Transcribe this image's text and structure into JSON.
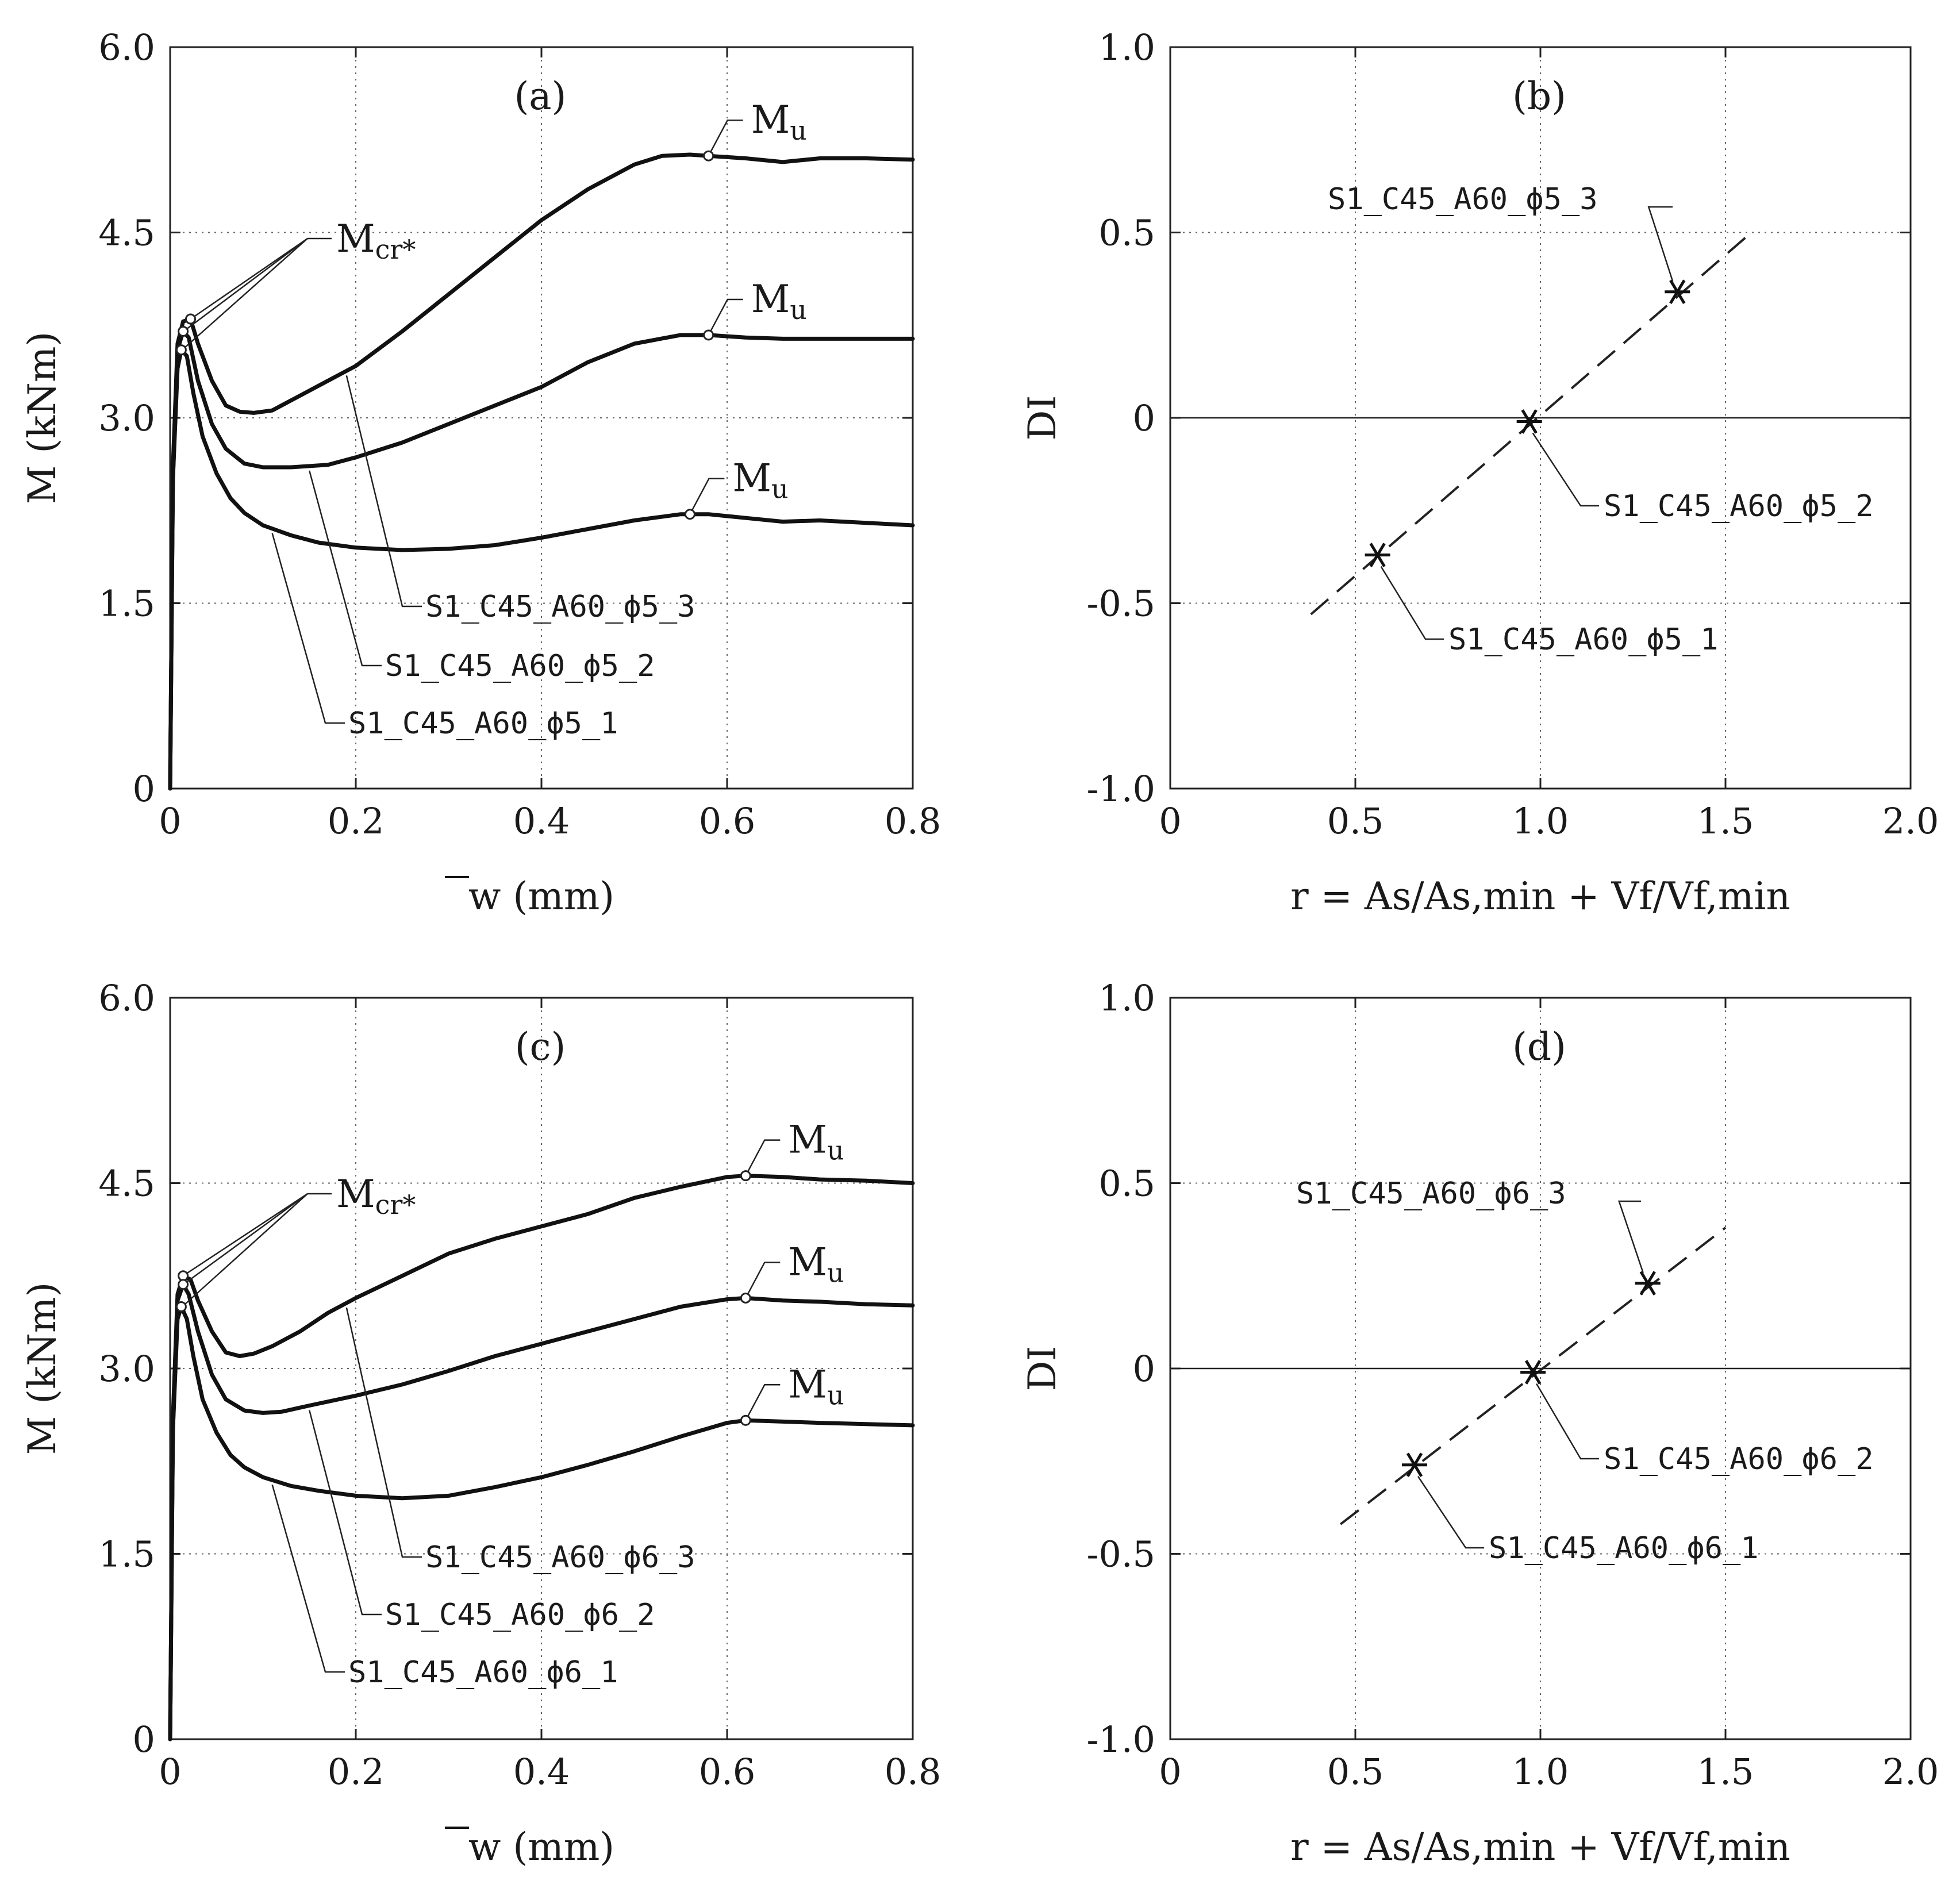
{
  "chart_data": [
    {
      "id": "a",
      "type": "line",
      "panel_label": "(a)",
      "xlabel": "w (mm)",
      "ylabel": "M (kNm)",
      "xlim": [
        0,
        0.8
      ],
      "ylim": [
        0,
        6.0
      ],
      "xticks": [
        "0",
        "0.2",
        "0.4",
        "0.6",
        "0.8"
      ],
      "yticks": [
        "0",
        "1.5",
        "3.0",
        "4.5",
        "6.0"
      ],
      "cracking_label": "Mcr*",
      "ultimate_label": "Mu",
      "series": [
        {
          "name": "S1_C45_A60_ϕ5_3",
          "x": [
            0,
            0.003,
            0.008,
            0.014,
            0.022,
            0.03,
            0.045,
            0.06,
            0.075,
            0.09,
            0.11,
            0.14,
            0.17,
            0.2,
            0.25,
            0.3,
            0.35,
            0.4,
            0.45,
            0.5,
            0.53,
            0.56,
            0.58,
            0.62,
            0.66,
            0.7,
            0.75,
            0.8
          ],
          "y": [
            0,
            2.6,
            3.6,
            3.78,
            3.8,
            3.6,
            3.3,
            3.1,
            3.05,
            3.04,
            3.06,
            3.18,
            3.3,
            3.42,
            3.7,
            4.0,
            4.3,
            4.6,
            4.85,
            5.05,
            5.12,
            5.13,
            5.12,
            5.1,
            5.07,
            5.1,
            5.1,
            5.09
          ],
          "ultimate": {
            "x": 0.58,
            "y": 5.12
          }
        },
        {
          "name": "S1_C45_A60_ϕ5_2",
          "x": [
            0,
            0.003,
            0.008,
            0.014,
            0.02,
            0.03,
            0.045,
            0.06,
            0.08,
            0.1,
            0.13,
            0.17,
            0.2,
            0.25,
            0.3,
            0.35,
            0.4,
            0.45,
            0.5,
            0.55,
            0.58,
            0.62,
            0.66,
            0.7,
            0.75,
            0.8
          ],
          "y": [
            0,
            2.5,
            3.55,
            3.7,
            3.65,
            3.3,
            2.95,
            2.75,
            2.63,
            2.6,
            2.6,
            2.62,
            2.68,
            2.8,
            2.95,
            3.1,
            3.25,
            3.45,
            3.6,
            3.67,
            3.67,
            3.65,
            3.64,
            3.64,
            3.64,
            3.64
          ],
          "ultimate": {
            "x": 0.58,
            "y": 3.67
          }
        },
        {
          "name": "S1_C45_A60_ϕ5_1",
          "x": [
            0,
            0.003,
            0.008,
            0.012,
            0.018,
            0.025,
            0.035,
            0.05,
            0.065,
            0.08,
            0.1,
            0.13,
            0.16,
            0.2,
            0.25,
            0.3,
            0.35,
            0.4,
            0.45,
            0.5,
            0.55,
            0.58,
            0.62,
            0.66,
            0.7,
            0.75,
            0.8
          ],
          "y": [
            0,
            2.5,
            3.4,
            3.55,
            3.5,
            3.2,
            2.85,
            2.55,
            2.35,
            2.23,
            2.13,
            2.05,
            1.99,
            1.95,
            1.93,
            1.94,
            1.97,
            2.03,
            2.1,
            2.17,
            2.22,
            2.22,
            2.19,
            2.16,
            2.17,
            2.15,
            2.13
          ],
          "ultimate": {
            "x": 0.56,
            "y": 2.22
          }
        }
      ]
    },
    {
      "id": "b",
      "type": "scatter",
      "panel_label": "(b)",
      "xlabel": "r = As/As,min + Vf/Vf,min",
      "ylabel": "DI",
      "xlim": [
        0,
        2.0
      ],
      "ylim": [
        -1.0,
        1.0
      ],
      "xticks": [
        "0",
        "0.5",
        "1.0",
        "1.5",
        "2.0"
      ],
      "yticks": [
        "-1.0",
        "-0.5",
        "0",
        "0.5",
        "1.0"
      ],
      "fit_line": {
        "x": [
          0.38,
          1.57
        ],
        "y": [
          -0.53,
          0.5
        ]
      },
      "series": [
        {
          "name": "S1_C45_A60_ϕ5_3",
          "x": 1.37,
          "y": 0.34
        },
        {
          "name": "S1_C45_A60_ϕ5_2",
          "x": 0.97,
          "y": -0.01
        },
        {
          "name": "S1_C45_A60_ϕ5_1",
          "x": 0.56,
          "y": -0.37
        }
      ]
    },
    {
      "id": "c",
      "type": "line",
      "panel_label": "(c)",
      "xlabel": "w (mm)",
      "ylabel": "M (kNm)",
      "xlim": [
        0,
        0.8
      ],
      "ylim": [
        0,
        6.0
      ],
      "xticks": [
        "0",
        "0.2",
        "0.4",
        "0.6",
        "0.8"
      ],
      "yticks": [
        "0",
        "1.5",
        "3.0",
        "4.5",
        "6.0"
      ],
      "cracking_label": "Mcr*",
      "ultimate_label": "Mu",
      "series": [
        {
          "name": "S1_C45_A60_ϕ6_3",
          "x": [
            0,
            0.003,
            0.008,
            0.014,
            0.022,
            0.03,
            0.045,
            0.06,
            0.075,
            0.09,
            0.11,
            0.14,
            0.17,
            0.2,
            0.25,
            0.3,
            0.35,
            0.4,
            0.45,
            0.5,
            0.55,
            0.6,
            0.62,
            0.66,
            0.7,
            0.75,
            0.8
          ],
          "y": [
            0,
            2.6,
            3.6,
            3.75,
            3.72,
            3.55,
            3.3,
            3.13,
            3.1,
            3.12,
            3.18,
            3.3,
            3.45,
            3.57,
            3.75,
            3.93,
            4.05,
            4.15,
            4.25,
            4.38,
            4.47,
            4.55,
            4.56,
            4.55,
            4.53,
            4.52,
            4.5
          ],
          "ultimate": {
            "x": 0.62,
            "y": 4.56
          }
        },
        {
          "name": "S1_C45_A60_ϕ6_2",
          "x": [
            0,
            0.003,
            0.008,
            0.014,
            0.02,
            0.03,
            0.045,
            0.06,
            0.08,
            0.1,
            0.12,
            0.15,
            0.2,
            0.25,
            0.3,
            0.35,
            0.4,
            0.45,
            0.5,
            0.55,
            0.6,
            0.62,
            0.66,
            0.7,
            0.75,
            0.8
          ],
          "y": [
            0,
            2.5,
            3.55,
            3.68,
            3.6,
            3.3,
            2.95,
            2.75,
            2.66,
            2.64,
            2.65,
            2.7,
            2.78,
            2.87,
            2.98,
            3.1,
            3.2,
            3.3,
            3.4,
            3.5,
            3.56,
            3.57,
            3.55,
            3.54,
            3.52,
            3.51
          ],
          "ultimate": {
            "x": 0.62,
            "y": 3.57
          }
        },
        {
          "name": "S1_C45_A60_ϕ6_1",
          "x": [
            0,
            0.003,
            0.008,
            0.012,
            0.018,
            0.025,
            0.035,
            0.05,
            0.065,
            0.08,
            0.1,
            0.13,
            0.16,
            0.2,
            0.25,
            0.3,
            0.35,
            0.4,
            0.45,
            0.5,
            0.55,
            0.6,
            0.62,
            0.66,
            0.7,
            0.75,
            0.8
          ],
          "y": [
            0,
            2.5,
            3.4,
            3.5,
            3.4,
            3.1,
            2.75,
            2.48,
            2.3,
            2.2,
            2.12,
            2.05,
            2.01,
            1.97,
            1.95,
            1.97,
            2.04,
            2.12,
            2.22,
            2.33,
            2.45,
            2.56,
            2.58,
            2.57,
            2.56,
            2.55,
            2.54
          ],
          "ultimate": {
            "x": 0.62,
            "y": 2.58
          }
        }
      ]
    },
    {
      "id": "d",
      "type": "scatter",
      "panel_label": "(d)",
      "xlabel": "r = As/As,min + Vf/Vf,min",
      "ylabel": "DI",
      "xlim": [
        0,
        2.0
      ],
      "ylim": [
        -1.0,
        1.0
      ],
      "xticks": [
        "0",
        "0.5",
        "1.0",
        "1.5",
        "2.0"
      ],
      "yticks": [
        "-1.0",
        "-0.5",
        "0",
        "0.5",
        "1.0"
      ],
      "fit_line": {
        "x": [
          0.46,
          1.5
        ],
        "y": [
          -0.42,
          0.38
        ]
      },
      "series": [
        {
          "name": "S1_C45_A60_ϕ6_3",
          "x": 1.29,
          "y": 0.23
        },
        {
          "name": "S1_C45_A60_ϕ6_2",
          "x": 0.98,
          "y": -0.01
        },
        {
          "name": "S1_C45_A60_ϕ6_1",
          "x": 0.66,
          "y": -0.26
        }
      ]
    }
  ]
}
